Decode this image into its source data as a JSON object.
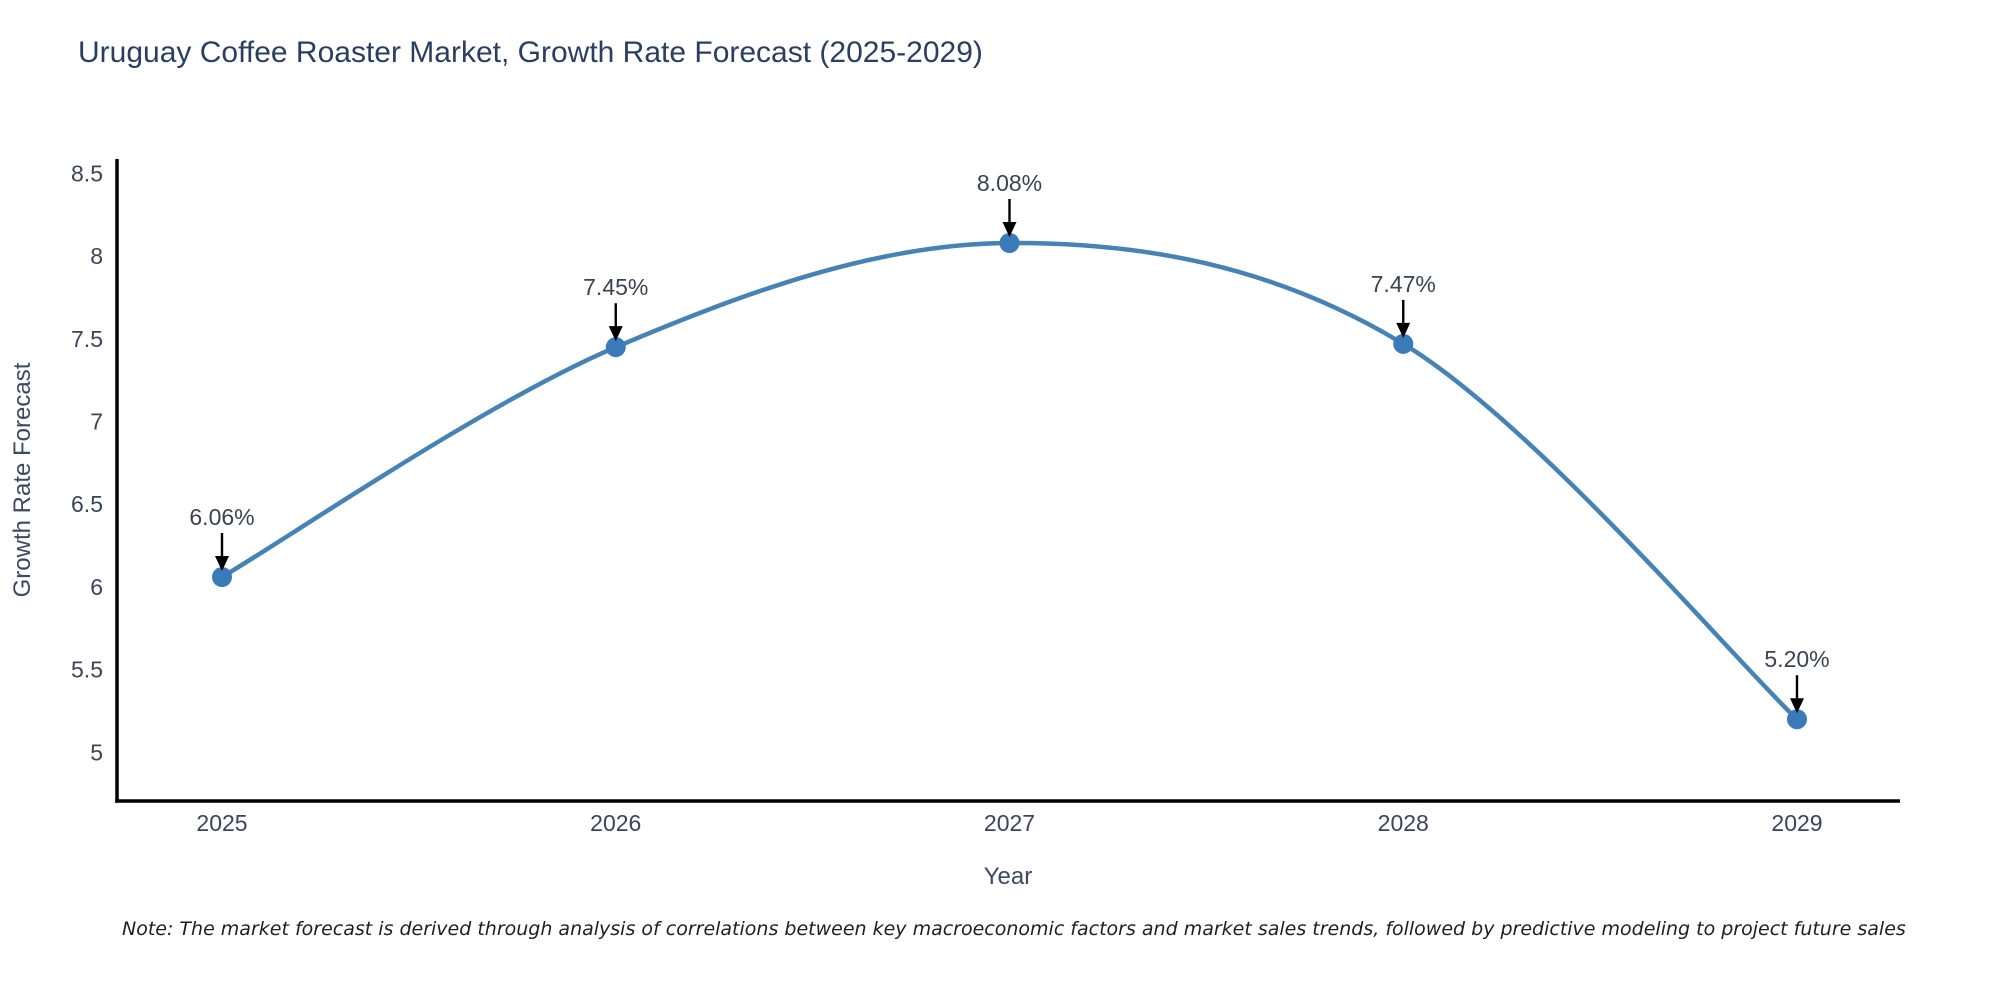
{
  "page": {
    "title": "Uruguay Coffee Roaster Market, Growth Rate Forecast (2025-2029)",
    "note": "Note: The market forecast is derived through analysis of correlations between key macroeconomic factors and market sales trends, followed by predictive modeling to project future sales"
  },
  "chart_data": {
    "type": "line",
    "title": "Uruguay Coffee Roaster Market, Growth Rate Forecast (2025-2029)",
    "xlabel": "Year",
    "ylabel": "Growth Rate Forecast",
    "categories": [
      2025,
      2026,
      2027,
      2028,
      2029
    ],
    "series": [
      {
        "name": "Growth Rate Forecast",
        "values": [
          6.06,
          7.45,
          8.08,
          7.47,
          5.2
        ]
      }
    ],
    "point_labels": [
      "6.06%",
      "7.45%",
      "8.08%",
      "7.47%",
      "5.20%"
    ],
    "y_ticks": [
      5,
      5.5,
      6,
      6.5,
      7,
      7.5,
      8,
      8.5
    ],
    "ylim": [
      4.7,
      8.6
    ],
    "grid": false,
    "legend": "none",
    "curve_style": "spline",
    "annotation_style": "value-label-with-down-arrow",
    "colors": {
      "line": "#4682b4",
      "marker": "#3a7ab8",
      "axis": "#000000",
      "tick_label": "#3b4559",
      "axis_title": "#3b4a5f",
      "annotation_text": "#3a434f",
      "annotation_arrow": "#000000",
      "title": "#2a3f5f",
      "note_text": "#1f1f1f",
      "background": "#ffffff"
    }
  }
}
